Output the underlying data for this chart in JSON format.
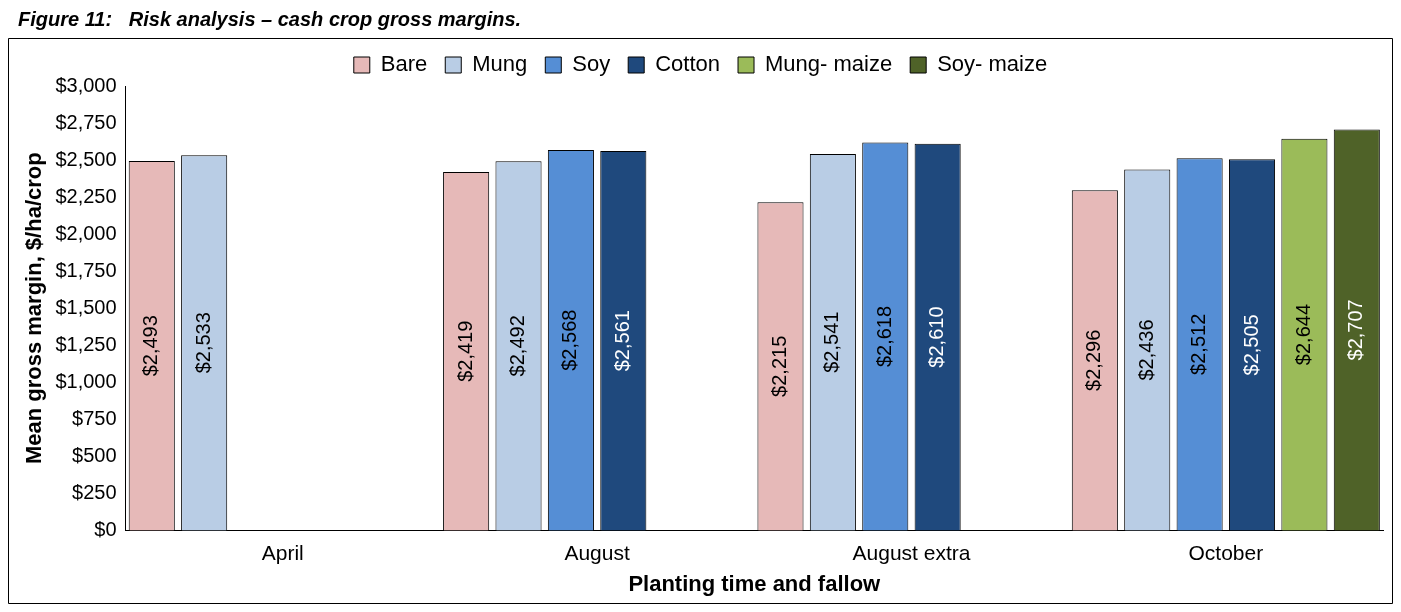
{
  "chart_data": {
    "type": "bar",
    "title": "Figure 11:   Risk analysis – cash crop gross margins.",
    "xlabel": "Planting time and fallow",
    "ylabel": "Mean gross margin, $/ha/crop",
    "categories": [
      "April",
      "August",
      "August extra",
      "October"
    ],
    "series": [
      {
        "name": "Bare",
        "color": "#e6b9b8",
        "values": [
          2493,
          2419,
          2215,
          2296
        ],
        "value_labels": [
          "$2,493",
          "$2,419",
          "$2,215",
          "$2,296"
        ]
      },
      {
        "name": "Mung",
        "color": "#b9cde5",
        "values": [
          2533,
          2492,
          2541,
          2436
        ],
        "value_labels": [
          "$2,533",
          "$2,492",
          "$2,541",
          "$2,436"
        ]
      },
      {
        "name": "Soy",
        "color": "#558ed5",
        "values": [
          null,
          2568,
          2618,
          2512
        ],
        "value_labels": [
          null,
          "$2,568",
          "$2,618",
          "$2,512"
        ]
      },
      {
        "name": "Cotton",
        "color": "#1f497d",
        "values": [
          null,
          2561,
          2610,
          2505
        ],
        "value_labels": [
          null,
          "$2,561",
          "$2,610",
          "$2,505"
        ]
      },
      {
        "name": "Mung- maize",
        "color": "#9bbb59",
        "values": [
          null,
          null,
          null,
          2644
        ],
        "value_labels": [
          null,
          null,
          null,
          "$2,644"
        ]
      },
      {
        "name": "Soy- maize",
        "color": "#4f6228",
        "values": [
          null,
          null,
          null,
          2707
        ],
        "value_labels": [
          null,
          null,
          null,
          "$2,707"
        ]
      }
    ],
    "ylim": [
      0,
      3000
    ],
    "yticks": [
      {
        "value": 0,
        "label": "$0"
      },
      {
        "value": 250,
        "label": "$250"
      },
      {
        "value": 500,
        "label": "$500"
      },
      {
        "value": 750,
        "label": "$750"
      },
      {
        "value": 1000,
        "label": "$1,000"
      },
      {
        "value": 1250,
        "label": "$1,250"
      },
      {
        "value": 1500,
        "label": "$1,500"
      },
      {
        "value": 1750,
        "label": "$1,750"
      },
      {
        "value": 2000,
        "label": "$2,000"
      },
      {
        "value": 2250,
        "label": "$2,250"
      },
      {
        "value": 2500,
        "label": "$2,500"
      },
      {
        "value": 2750,
        "label": "$2,750"
      },
      {
        "value": 3000,
        "label": "$3,000"
      }
    ],
    "grid": false,
    "legend": "top"
  }
}
